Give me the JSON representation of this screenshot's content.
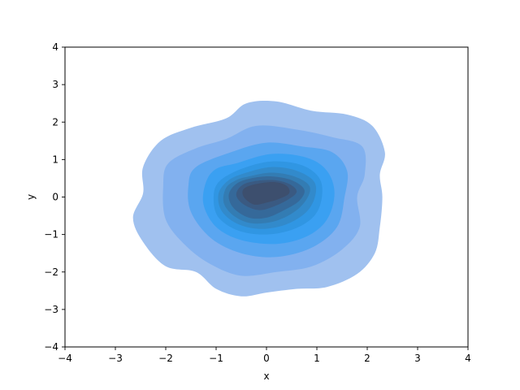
{
  "chart_data": {
    "type": "kde-contour",
    "title": "",
    "xlabel": "x",
    "ylabel": "y",
    "xlim": [
      -4,
      4
    ],
    "ylim": [
      -4,
      4
    ],
    "xticks": [
      -4,
      -3,
      -2,
      -1,
      0,
      1,
      2,
      3,
      4
    ],
    "yticks": [
      -4,
      -3,
      -2,
      -1,
      0,
      1,
      2,
      3,
      4
    ],
    "xtick_labels": [
      "−4",
      "−3",
      "−2",
      "−1",
      "0",
      "1",
      "2",
      "3",
      "4"
    ],
    "ytick_labels": [
      "−4",
      "−3",
      "−2",
      "−1",
      "0",
      "1",
      "2",
      "3",
      "4"
    ],
    "grid": false,
    "fill": true,
    "levels": [
      {
        "level": 1,
        "color": "#a0c1ef",
        "points": [
          [
            -0.8,
            2.1
          ],
          [
            -0.4,
            2.5
          ],
          [
            0.2,
            2.55
          ],
          [
            0.9,
            2.3
          ],
          [
            1.6,
            2.2
          ],
          [
            2.1,
            1.9
          ],
          [
            2.35,
            1.2
          ],
          [
            2.25,
            0.6
          ],
          [
            2.3,
            0.0
          ],
          [
            2.25,
            -0.8
          ],
          [
            2.15,
            -1.5
          ],
          [
            1.8,
            -2.05
          ],
          [
            1.2,
            -2.4
          ],
          [
            0.6,
            -2.45
          ],
          [
            0.0,
            -2.55
          ],
          [
            -0.5,
            -2.65
          ],
          [
            -1.0,
            -2.45
          ],
          [
            -1.4,
            -2.0
          ],
          [
            -2.0,
            -1.85
          ],
          [
            -2.45,
            -1.2
          ],
          [
            -2.65,
            -0.55
          ],
          [
            -2.45,
            0.1
          ],
          [
            -2.45,
            0.8
          ],
          [
            -2.1,
            1.5
          ],
          [
            -1.5,
            1.85
          ]
        ]
      },
      {
        "level": 2,
        "color": "#82b1ef",
        "points": [
          [
            -0.8,
            1.55
          ],
          [
            -0.2,
            1.9
          ],
          [
            0.6,
            1.8
          ],
          [
            1.3,
            1.6
          ],
          [
            1.9,
            1.35
          ],
          [
            1.95,
            0.6
          ],
          [
            1.8,
            0.0
          ],
          [
            1.85,
            -0.8
          ],
          [
            1.5,
            -1.4
          ],
          [
            0.9,
            -1.85
          ],
          [
            0.2,
            -2.0
          ],
          [
            -0.5,
            -2.1
          ],
          [
            -1.1,
            -1.8
          ],
          [
            -1.6,
            -1.3
          ],
          [
            -2.0,
            -0.6
          ],
          [
            -2.05,
            0.3
          ],
          [
            -1.95,
            0.9
          ],
          [
            -1.4,
            1.3
          ]
        ]
      },
      {
        "level": 3,
        "color": "#5aa6f0",
        "points": [
          [
            -0.7,
            1.2
          ],
          [
            0.0,
            1.45
          ],
          [
            0.7,
            1.35
          ],
          [
            1.3,
            1.2
          ],
          [
            1.6,
            0.7
          ],
          [
            1.55,
            0.0
          ],
          [
            1.4,
            -0.8
          ],
          [
            0.9,
            -1.35
          ],
          [
            0.2,
            -1.6
          ],
          [
            -0.5,
            -1.5
          ],
          [
            -1.1,
            -1.1
          ],
          [
            -1.5,
            -0.4
          ],
          [
            -1.55,
            0.3
          ],
          [
            -1.4,
            0.8
          ]
        ]
      },
      {
        "level": 4,
        "color": "#3aa0f2",
        "points": [
          [
            -0.6,
            0.9
          ],
          [
            0.1,
            1.15
          ],
          [
            0.8,
            1.05
          ],
          [
            1.2,
            0.7
          ],
          [
            1.35,
            0.1
          ],
          [
            1.2,
            -0.6
          ],
          [
            0.8,
            -1.05
          ],
          [
            0.2,
            -1.25
          ],
          [
            -0.5,
            -1.15
          ],
          [
            -1.0,
            -0.8
          ],
          [
            -1.25,
            -0.2
          ],
          [
            -1.2,
            0.4
          ],
          [
            -1.0,
            0.75
          ]
        ]
      },
      {
        "level": 5,
        "color": "#3096e3",
        "points": [
          [
            -0.5,
            0.75
          ],
          [
            0.1,
            0.95
          ],
          [
            0.7,
            0.85
          ],
          [
            1.05,
            0.5
          ],
          [
            1.1,
            0.0
          ],
          [
            0.95,
            -0.5
          ],
          [
            0.55,
            -0.85
          ],
          [
            0.0,
            -1.0
          ],
          [
            -0.55,
            -0.9
          ],
          [
            -0.95,
            -0.55
          ],
          [
            -1.05,
            -0.05
          ],
          [
            -0.95,
            0.4
          ]
        ]
      },
      {
        "level": 6,
        "color": "#328acb",
        "points": [
          [
            -0.4,
            0.65
          ],
          [
            0.1,
            0.8
          ],
          [
            0.6,
            0.7
          ],
          [
            0.95,
            0.4
          ],
          [
            0.95,
            -0.05
          ],
          [
            0.75,
            -0.45
          ],
          [
            0.35,
            -0.75
          ],
          [
            -0.15,
            -0.85
          ],
          [
            -0.6,
            -0.7
          ],
          [
            -0.9,
            -0.35
          ],
          [
            -0.95,
            0.1
          ],
          [
            -0.75,
            0.45
          ]
        ]
      },
      {
        "level": 7,
        "color": "#337cb3",
        "points": [
          [
            -0.35,
            0.55
          ],
          [
            0.1,
            0.65
          ],
          [
            0.55,
            0.55
          ],
          [
            0.85,
            0.3
          ],
          [
            0.8,
            -0.05
          ],
          [
            0.55,
            -0.4
          ],
          [
            0.15,
            -0.65
          ],
          [
            -0.3,
            -0.7
          ],
          [
            -0.65,
            -0.5
          ],
          [
            -0.85,
            -0.15
          ],
          [
            -0.8,
            0.25
          ],
          [
            -0.6,
            0.45
          ]
        ]
      },
      {
        "level": 8,
        "color": "#35699a",
        "points": [
          [
            -0.3,
            0.5
          ],
          [
            0.1,
            0.55
          ],
          [
            0.5,
            0.45
          ],
          [
            0.75,
            0.2
          ],
          [
            0.65,
            -0.1
          ],
          [
            0.35,
            -0.35
          ],
          [
            0.0,
            -0.55
          ],
          [
            -0.35,
            -0.55
          ],
          [
            -0.65,
            -0.3
          ],
          [
            -0.75,
            0.05
          ],
          [
            -0.6,
            0.35
          ]
        ]
      },
      {
        "level": 9,
        "color": "#3a5a82",
        "points": [
          [
            -0.25,
            0.42
          ],
          [
            0.15,
            0.45
          ],
          [
            0.45,
            0.35
          ],
          [
            0.6,
            0.15
          ],
          [
            0.45,
            -0.05
          ],
          [
            0.15,
            -0.25
          ],
          [
            -0.15,
            -0.35
          ],
          [
            -0.45,
            -0.2
          ],
          [
            -0.6,
            0.05
          ],
          [
            -0.5,
            0.3
          ]
        ]
      },
      {
        "level": 10,
        "color": "#3d4f6e",
        "points": [
          [
            -0.2,
            0.35
          ],
          [
            0.15,
            0.4
          ],
          [
            0.4,
            0.3
          ],
          [
            0.45,
            0.1
          ],
          [
            0.25,
            -0.05
          ],
          [
            0.0,
            -0.15
          ],
          [
            -0.25,
            -0.2
          ],
          [
            -0.45,
            0.0
          ],
          [
            -0.45,
            0.22
          ]
        ]
      }
    ]
  }
}
